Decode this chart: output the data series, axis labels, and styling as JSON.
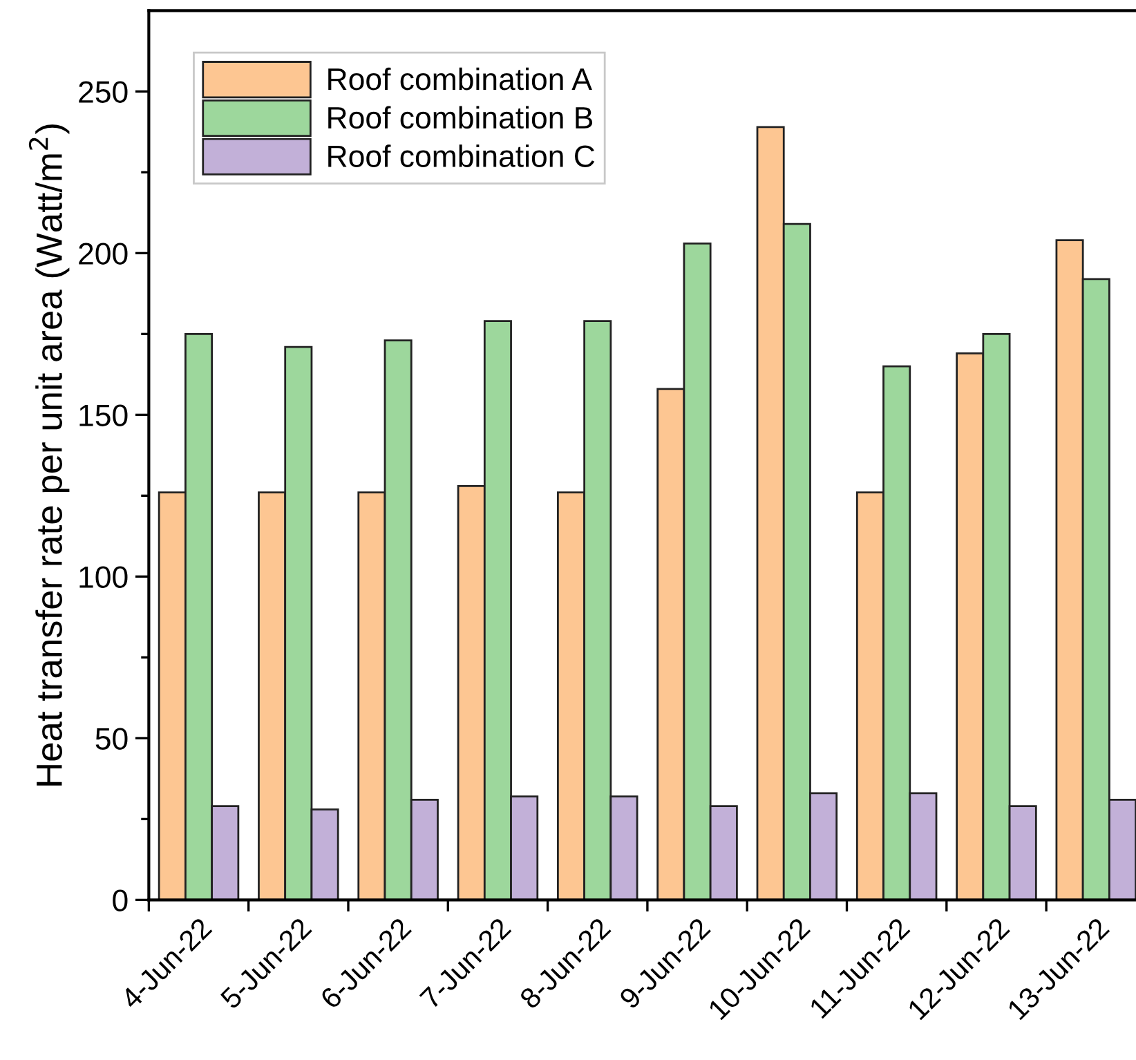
{
  "chart_data": {
    "type": "bar",
    "ylabel": "Heat transfer rate per unit area (Watt/m$^{2}$)",
    "categories": [
      "4-Jun-22",
      "5-Jun-22",
      "6-Jun-22",
      "7-Jun-22",
      "8-Jun-22",
      "9-Jun-22",
      "10-Jun-22",
      "11-Jun-22",
      "12-Jun-22",
      "13-Jun-22"
    ],
    "series": [
      {
        "name": "Roof combination A",
        "color": "#fdc692",
        "values": [
          126,
          126,
          126,
          128,
          126,
          158,
          239,
          126,
          169,
          204
        ]
      },
      {
        "name": "Roof combination B",
        "color": "#9dd79c",
        "values": [
          175,
          171,
          173,
          179,
          179,
          203,
          209,
          165,
          175,
          192
        ]
      },
      {
        "name": "Roof combination C",
        "color": "#c2b0d8",
        "values": [
          29,
          28,
          31,
          32,
          32,
          29,
          33,
          33,
          29,
          31
        ]
      }
    ],
    "ylim": [
      0,
      275
    ],
    "yticks": [
      0,
      50,
      100,
      150,
      200,
      250
    ],
    "grid": false,
    "legend": "top left"
  }
}
